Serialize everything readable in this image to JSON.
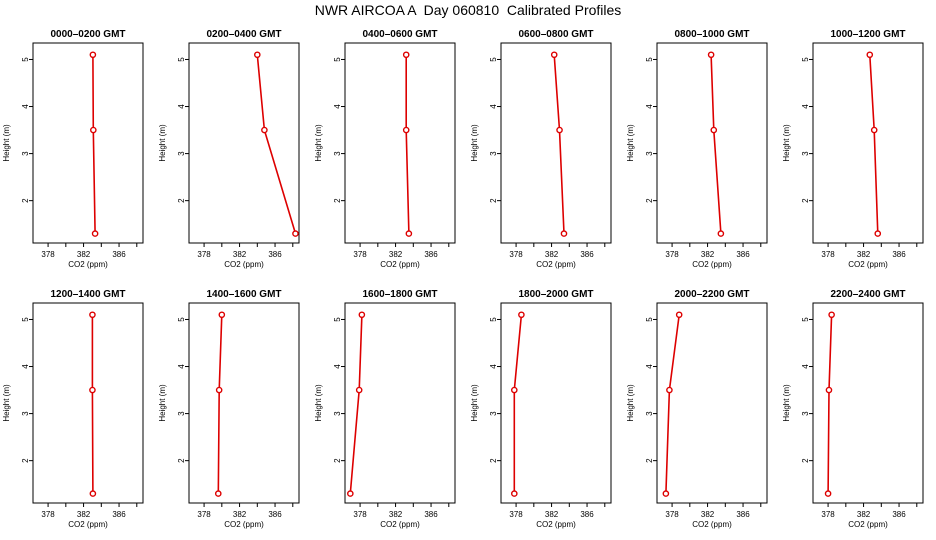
{
  "title": "NWR AIRCOA A  Day 060810  Calibrated Profiles",
  "colors": {
    "profile": "#dd0000",
    "axis": "#000000"
  },
  "chart_data": [
    {
      "type": "line",
      "title": "0000–0200 GMT",
      "xlabel": "CO2 (ppm)",
      "ylabel": "Height (m)",
      "xlim": [
        376.3,
        388.7
      ],
      "ylim": [
        1.1,
        5.35
      ],
      "x_ticks": [
        378,
        382,
        386
      ],
      "y_ticks": [
        2,
        3,
        4,
        5
      ],
      "series": [
        {
          "x": [
            383.05,
            383.1,
            383.3
          ],
          "y": [
            5.1,
            3.5,
            1.3
          ]
        }
      ]
    },
    {
      "type": "line",
      "title": "0200–0400 GMT",
      "xlabel": "CO2 (ppm)",
      "ylabel": "Height (m)",
      "xlim": [
        376.3,
        388.7
      ],
      "ylim": [
        1.1,
        5.35
      ],
      "x_ticks": [
        378,
        382,
        386
      ],
      "y_ticks": [
        2,
        3,
        4,
        5
      ],
      "series": [
        {
          "x": [
            384.0,
            384.8,
            388.3
          ],
          "y": [
            5.1,
            3.5,
            1.3
          ]
        }
      ]
    },
    {
      "type": "line",
      "title": "0400–0600 GMT",
      "xlabel": "CO2 (ppm)",
      "ylabel": "Height (m)",
      "xlim": [
        376.3,
        388.7
      ],
      "ylim": [
        1.1,
        5.35
      ],
      "x_ticks": [
        378,
        382,
        386
      ],
      "y_ticks": [
        2,
        3,
        4,
        5
      ],
      "series": [
        {
          "x": [
            383.2,
            383.2,
            383.5
          ],
          "y": [
            5.1,
            3.5,
            1.3
          ]
        }
      ]
    },
    {
      "type": "line",
      "title": "0600–0800 GMT",
      "xlabel": "CO2 (ppm)",
      "ylabel": "Height (m)",
      "xlim": [
        376.3,
        388.7
      ],
      "ylim": [
        1.1,
        5.35
      ],
      "x_ticks": [
        378,
        382,
        386
      ],
      "y_ticks": [
        2,
        3,
        4,
        5
      ],
      "series": [
        {
          "x": [
            382.3,
            382.9,
            383.4
          ],
          "y": [
            5.1,
            3.5,
            1.3
          ]
        }
      ]
    },
    {
      "type": "line",
      "title": "0800–1000 GMT",
      "xlabel": "CO2 (ppm)",
      "ylabel": "Height (m)",
      "xlim": [
        376.3,
        388.7
      ],
      "ylim": [
        1.1,
        5.35
      ],
      "x_ticks": [
        378,
        382,
        386
      ],
      "y_ticks": [
        2,
        3,
        4,
        5
      ],
      "series": [
        {
          "x": [
            382.4,
            382.7,
            383.5
          ],
          "y": [
            5.1,
            3.5,
            1.3
          ]
        }
      ]
    },
    {
      "type": "line",
      "title": "1000–1200 GMT",
      "xlabel": "CO2 (ppm)",
      "ylabel": "Height (m)",
      "xlim": [
        376.3,
        388.7
      ],
      "ylim": [
        1.1,
        5.35
      ],
      "x_ticks": [
        378,
        382,
        386
      ],
      "y_ticks": [
        2,
        3,
        4,
        5
      ],
      "series": [
        {
          "x": [
            382.7,
            383.2,
            383.6
          ],
          "y": [
            5.1,
            3.5,
            1.3
          ]
        }
      ]
    },
    {
      "type": "line",
      "title": "1200–1400 GMT",
      "xlabel": "CO2 (ppm)",
      "ylabel": "Height (m)",
      "xlim": [
        376.3,
        388.7
      ],
      "ylim": [
        1.1,
        5.35
      ],
      "x_ticks": [
        378,
        382,
        386
      ],
      "y_ticks": [
        2,
        3,
        4,
        5
      ],
      "series": [
        {
          "x": [
            383.0,
            383.0,
            383.05
          ],
          "y": [
            5.1,
            3.5,
            1.3
          ]
        }
      ]
    },
    {
      "type": "line",
      "title": "1400–1600 GMT",
      "xlabel": "CO2 (ppm)",
      "ylabel": "Height (m)",
      "xlim": [
        376.3,
        388.7
      ],
      "ylim": [
        1.1,
        5.35
      ],
      "x_ticks": [
        378,
        382,
        386
      ],
      "y_ticks": [
        2,
        3,
        4,
        5
      ],
      "series": [
        {
          "x": [
            380.0,
            379.7,
            379.6
          ],
          "y": [
            5.1,
            3.5,
            1.3
          ]
        }
      ]
    },
    {
      "type": "line",
      "title": "1600–1800 GMT",
      "xlabel": "CO2 (ppm)",
      "ylabel": "Height (m)",
      "xlim": [
        376.3,
        388.7
      ],
      "ylim": [
        1.1,
        5.35
      ],
      "x_ticks": [
        378,
        382,
        386
      ],
      "y_ticks": [
        2,
        3,
        4,
        5
      ],
      "series": [
        {
          "x": [
            378.2,
            377.9,
            376.9
          ],
          "y": [
            5.1,
            3.5,
            1.3
          ]
        }
      ]
    },
    {
      "type": "line",
      "title": "1800–2000 GMT",
      "xlabel": "CO2 (ppm)",
      "ylabel": "Height (m)",
      "xlim": [
        376.3,
        388.7
      ],
      "ylim": [
        1.1,
        5.35
      ],
      "x_ticks": [
        378,
        382,
        386
      ],
      "y_ticks": [
        2,
        3,
        4,
        5
      ],
      "series": [
        {
          "x": [
            378.6,
            377.8,
            377.8
          ],
          "y": [
            5.1,
            3.5,
            1.3
          ]
        }
      ]
    },
    {
      "type": "line",
      "title": "2000–2200 GMT",
      "xlabel": "CO2 (ppm)",
      "ylabel": "Height (m)",
      "xlim": [
        376.3,
        388.7
      ],
      "ylim": [
        1.1,
        5.35
      ],
      "x_ticks": [
        378,
        382,
        386
      ],
      "y_ticks": [
        2,
        3,
        4,
        5
      ],
      "series": [
        {
          "x": [
            378.8,
            377.7,
            377.3
          ],
          "y": [
            5.1,
            3.5,
            1.3
          ]
        }
      ]
    },
    {
      "type": "line",
      "title": "2200–2400 GMT",
      "xlabel": "CO2 (ppm)",
      "ylabel": "Height (m)",
      "xlim": [
        376.3,
        388.7
      ],
      "ylim": [
        1.1,
        5.35
      ],
      "x_ticks": [
        378,
        382,
        386
      ],
      "y_ticks": [
        2,
        3,
        4,
        5
      ],
      "series": [
        {
          "x": [
            378.4,
            378.1,
            378.0
          ],
          "y": [
            5.1,
            3.5,
            1.3
          ]
        }
      ]
    }
  ]
}
